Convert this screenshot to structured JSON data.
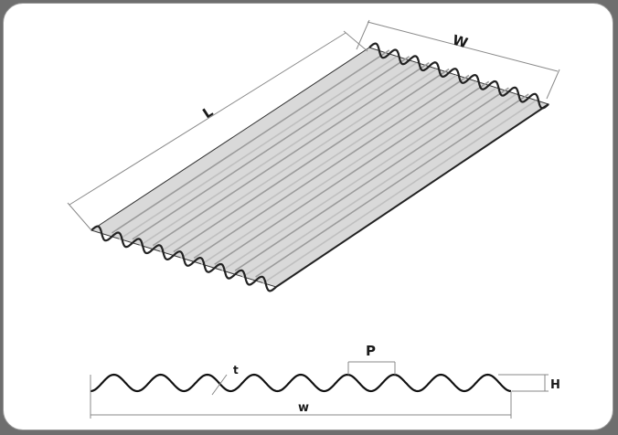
{
  "diagram": {
    "sheet_labels": {
      "length": "L",
      "width": "W"
    },
    "profile_labels": {
      "pitch": "P",
      "thickness": "t",
      "height": "H",
      "width": "w"
    }
  },
  "colors": {
    "background": "#6e6e6e",
    "panel": "#ffffff",
    "sheet_fill": "#d6d6d6",
    "sheet_edge": "#2a2a2a",
    "dimension_line": "#888888"
  }
}
